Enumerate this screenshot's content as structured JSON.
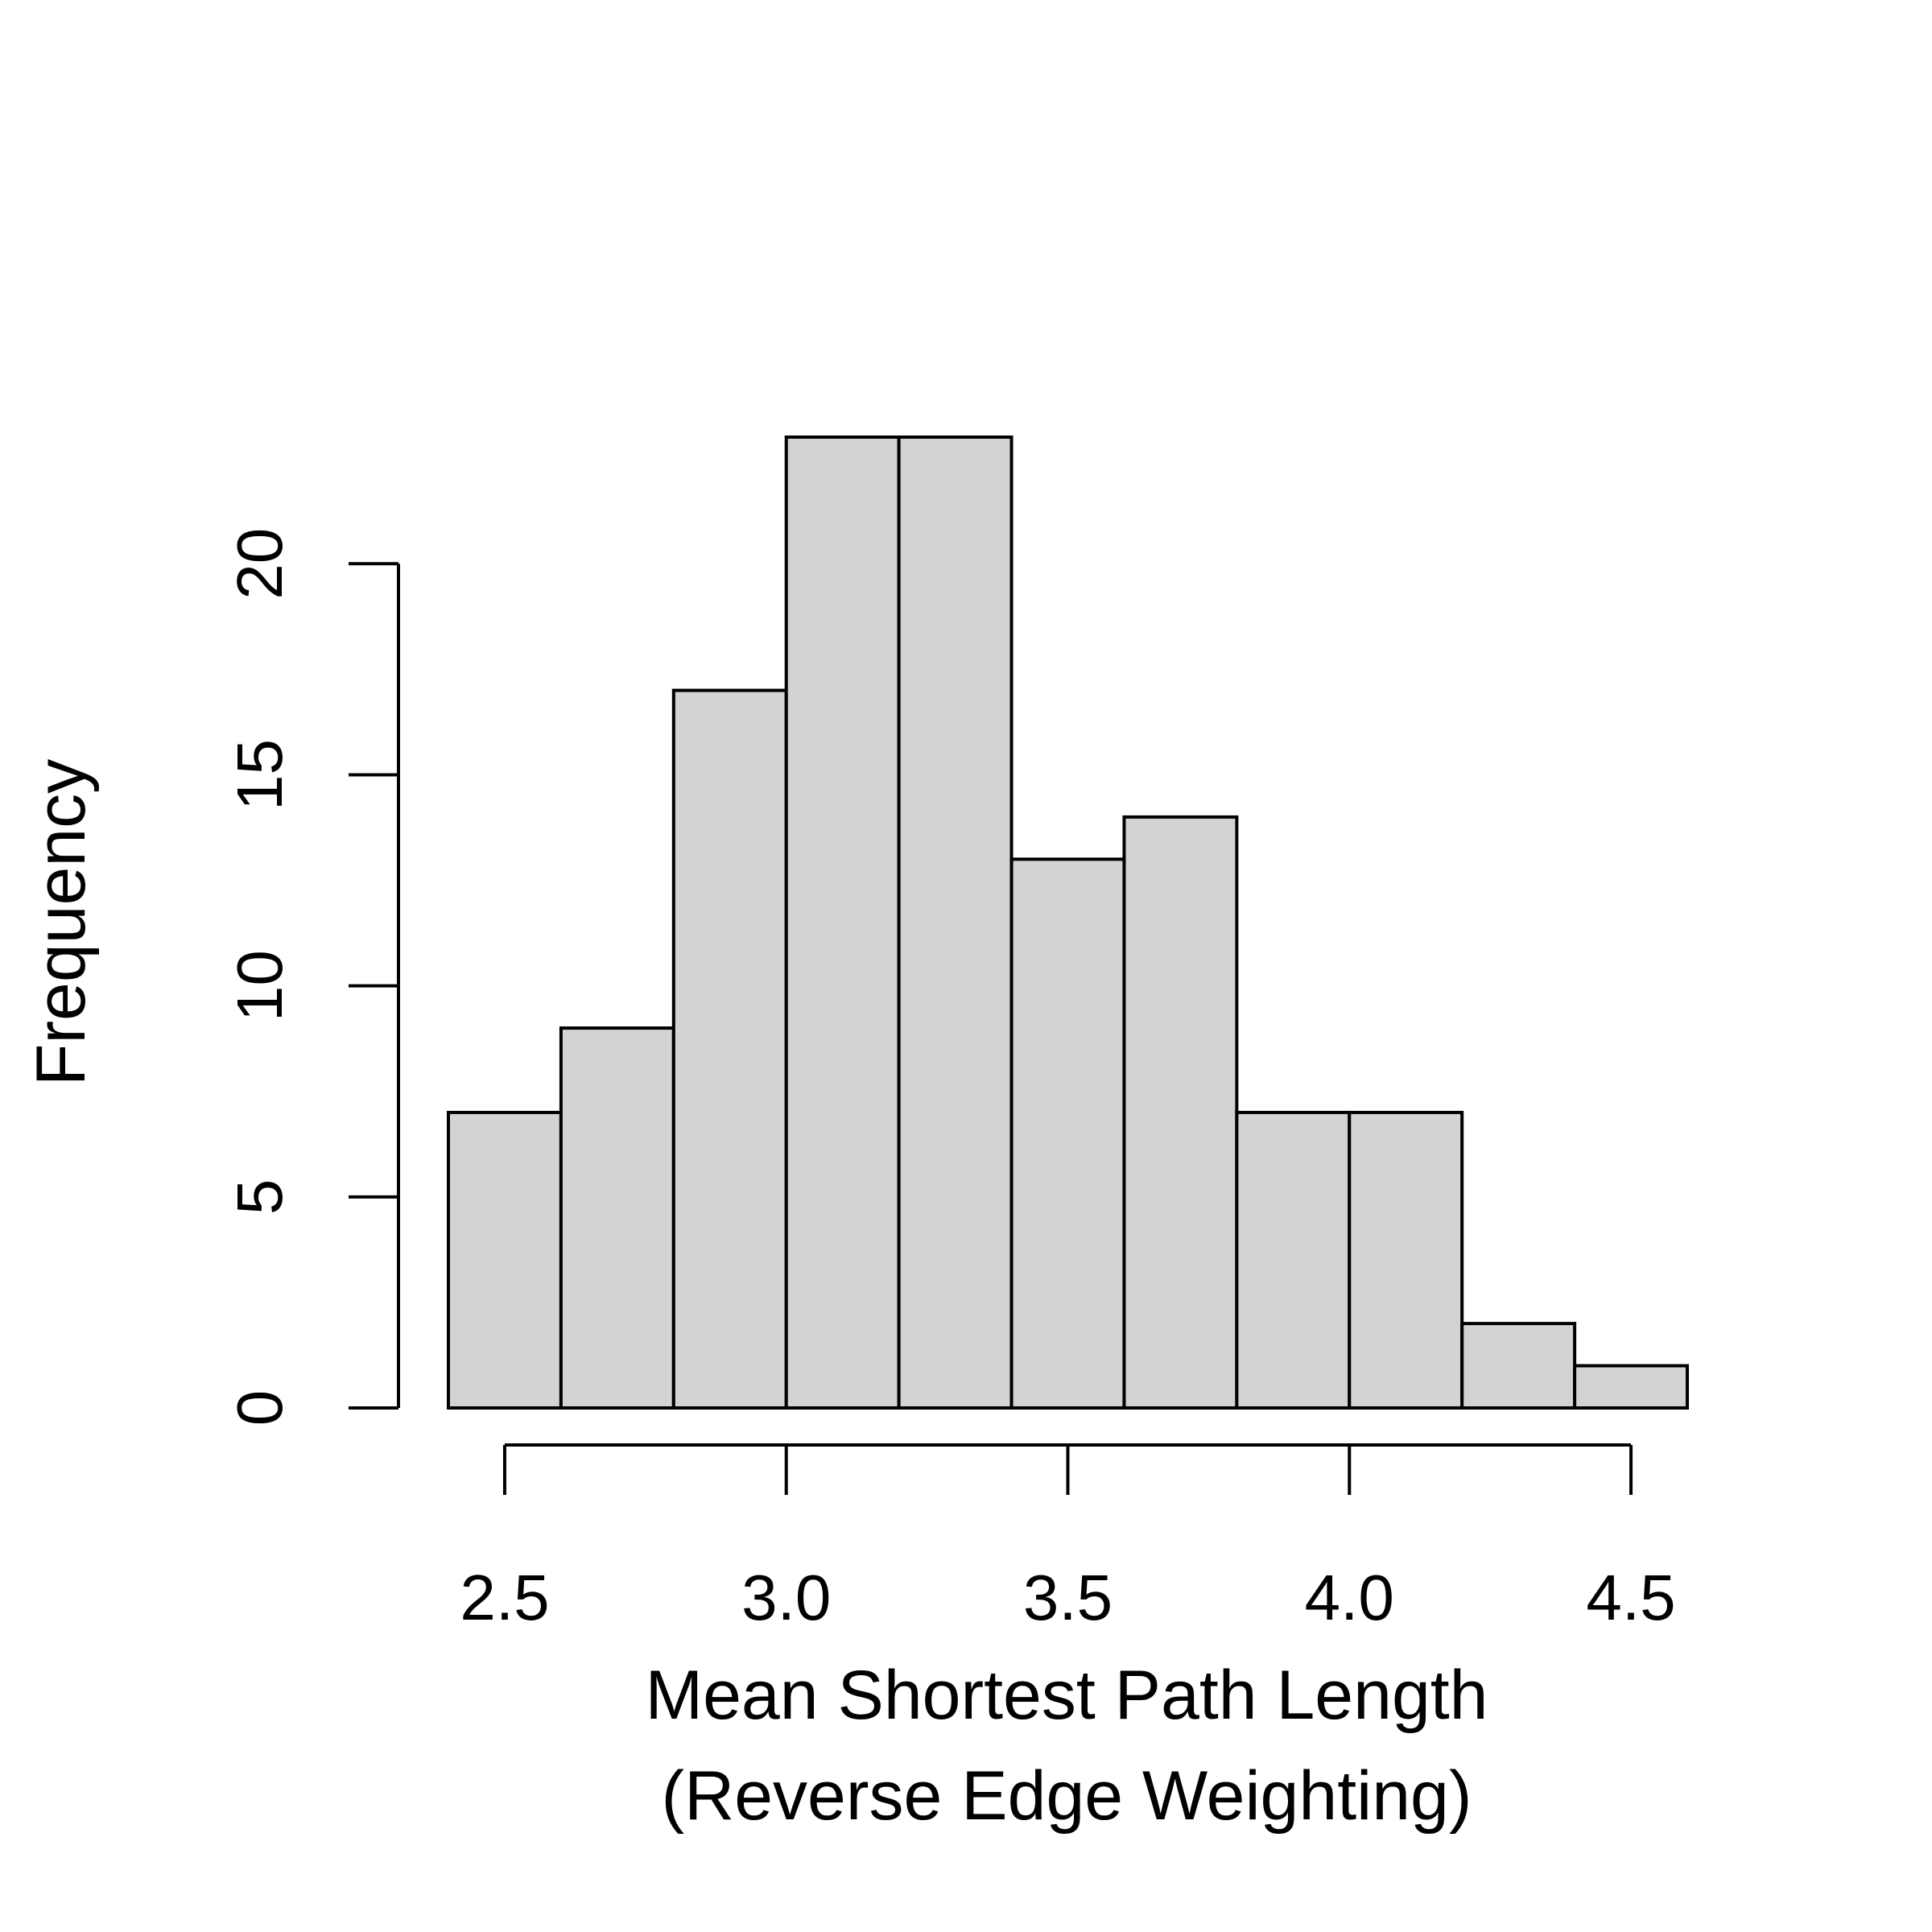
{
  "chart_data": {
    "type": "bar",
    "subtype": "histogram",
    "title": "",
    "xlabel_lines": [
      "Mean Shortest Path Length",
      "(Reverse Edge Weighting)"
    ],
    "ylabel": "Frequency",
    "bins": [
      {
        "x0": 2.4,
        "x1": 2.6,
        "count": 7
      },
      {
        "x0": 2.6,
        "x1": 2.8,
        "count": 9
      },
      {
        "x0": 2.8,
        "x1": 3.0,
        "count": 17
      },
      {
        "x0": 3.0,
        "x1": 3.2,
        "count": 23
      },
      {
        "x0": 3.2,
        "x1": 3.4,
        "count": 23
      },
      {
        "x0": 3.4,
        "x1": 3.6,
        "count": 13
      },
      {
        "x0": 3.6,
        "x1": 3.8,
        "count": 14
      },
      {
        "x0": 3.8,
        "x1": 4.0,
        "count": 7
      },
      {
        "x0": 4.0,
        "x1": 4.2,
        "count": 7
      },
      {
        "x0": 4.2,
        "x1": 4.4,
        "count": 2
      },
      {
        "x0": 4.4,
        "x1": 4.6,
        "count": 1
      }
    ],
    "x_ticks": [
      "2.5",
      "3.0",
      "3.5",
      "4.0",
      "4.5"
    ],
    "y_ticks": [
      "0",
      "5",
      "10",
      "15",
      "20"
    ],
    "xlim": [
      2.4,
      4.6
    ],
    "ylim": [
      0,
      23
    ],
    "grid": false,
    "legend": "none",
    "bar_fill": "#d3d3d3",
    "bar_stroke": "#000000"
  }
}
